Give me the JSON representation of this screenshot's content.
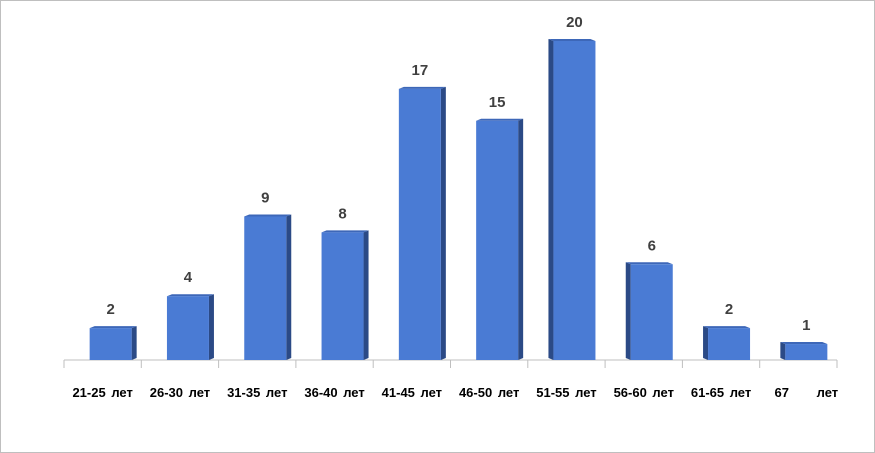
{
  "chart_data": {
    "type": "bar",
    "categories": [
      "21-25 лет",
      "26-30 лет",
      "31-35 лет",
      "36-40 лет",
      "41-45 лет",
      "46-50 лет",
      "51-55 лет",
      "56-60 лет",
      "61-65 лет",
      "67 лет"
    ],
    "values": [
      2,
      4,
      9,
      8,
      17,
      15,
      20,
      6,
      2,
      1
    ],
    "color": "#4a7bd4"
  }
}
